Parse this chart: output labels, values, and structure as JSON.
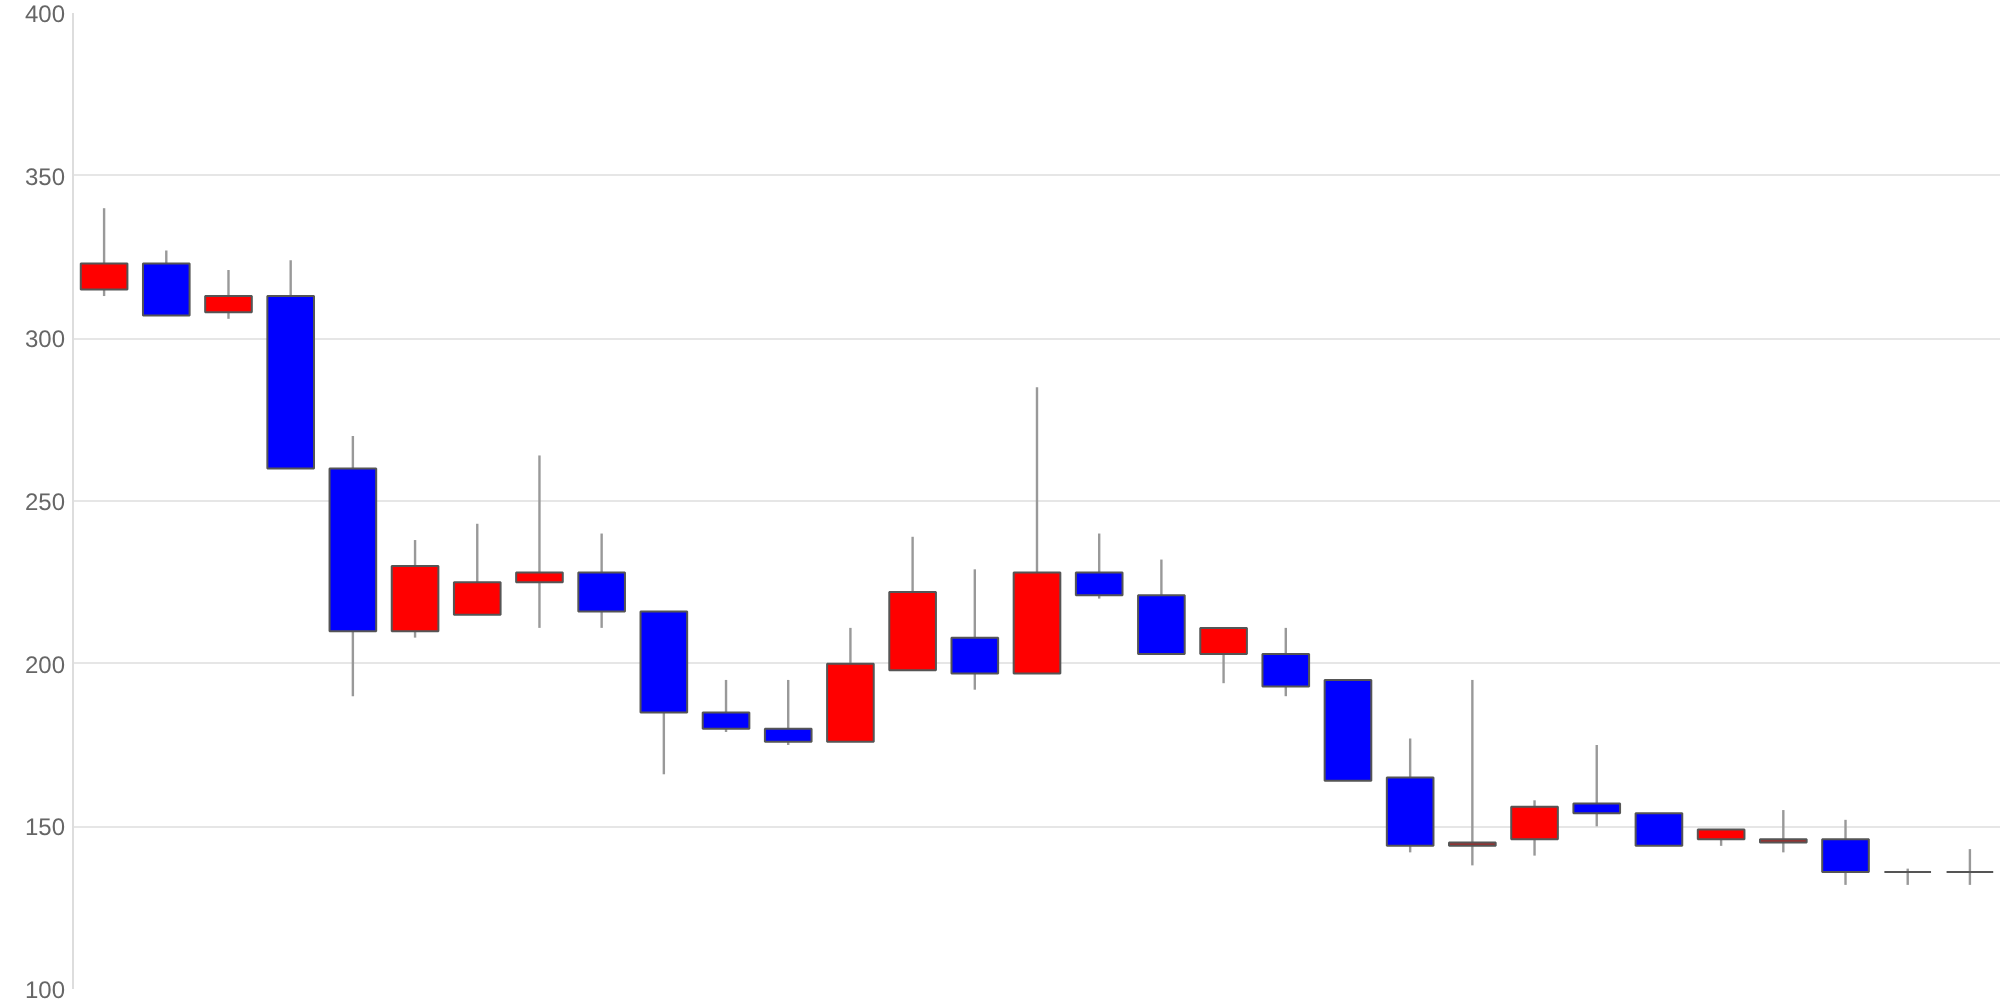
{
  "chart_data": {
    "type": "candlestick",
    "categories": [
      null,
      null,
      null,
      null,
      null,
      null,
      null,
      null,
      null,
      null,
      null,
      null,
      null,
      null,
      null,
      null,
      null,
      null,
      null,
      null,
      null,
      null,
      null,
      null,
      null,
      null,
      null,
      null,
      null,
      null,
      null
    ],
    "ohlc": [
      [
        315,
        340,
        313,
        323
      ],
      [
        323,
        327,
        307,
        307
      ],
      [
        308,
        321,
        306,
        313
      ],
      [
        313,
        324,
        260,
        260
      ],
      [
        260,
        270,
        190,
        210
      ],
      [
        210,
        238,
        208,
        230
      ],
      [
        215,
        243,
        215,
        225
      ],
      [
        225,
        264,
        211,
        228
      ],
      [
        228,
        240,
        211,
        216
      ],
      [
        216,
        216,
        166,
        185
      ],
      [
        185,
        195,
        179,
        180
      ],
      [
        180,
        195,
        175,
        176
      ],
      [
        176,
        211,
        176,
        200
      ],
      [
        198,
        239,
        198,
        222
      ],
      [
        208,
        229,
        192,
        197
      ],
      [
        197,
        285,
        197,
        228
      ],
      [
        228,
        240,
        220,
        221
      ],
      [
        221,
        232,
        203,
        203
      ],
      [
        203,
        211,
        194,
        211
      ],
      [
        203,
        211,
        190,
        193
      ],
      [
        195,
        195,
        164,
        164
      ],
      [
        165,
        177,
        142,
        144
      ],
      [
        144,
        195,
        138,
        145
      ],
      [
        146,
        158,
        141,
        156
      ],
      [
        157,
        175,
        150,
        154
      ],
      [
        154,
        154,
        144,
        144
      ],
      [
        146,
        149,
        144,
        149
      ],
      [
        145,
        155,
        142,
        146
      ],
      [
        146,
        152,
        132,
        136
      ],
      [
        136,
        137,
        132,
        136
      ],
      [
        136,
        143,
        132,
        136
      ]
    ],
    "colors": [
      "#ff0000",
      "#0000ff",
      "#ff0000",
      "#0000ff",
      "#0000ff",
      "#ff0000",
      "#ff0000",
      "#ff0000",
      "#0000ff",
      "#0000ff",
      "#0000ff",
      "#0000ff",
      "#ff0000",
      "#ff0000",
      "#0000ff",
      "#ff0000",
      "#0000ff",
      "#0000ff",
      "#ff0000",
      "#0000ff",
      "#0000ff",
      "#0000ff",
      "#a52a2a",
      "#ff0000",
      "#0000ff",
      "#0000ff",
      "#ff0000",
      "#a52a2a",
      "#0000ff",
      "#555555",
      "#555555"
    ],
    "ylim": [
      100,
      400
    ],
    "yticks": [
      100,
      150,
      200,
      250,
      300,
      350,
      400
    ],
    "grid": "y",
    "tick_labels": "y"
  }
}
